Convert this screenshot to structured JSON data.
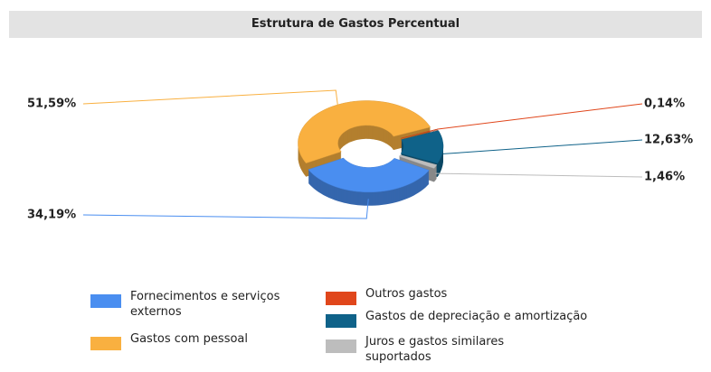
{
  "chart_data": {
    "type": "pie",
    "title": "Estrutura de Gastos Percentual",
    "categories": [
      "Fornecimentos e serviços externos",
      "Gastos com pessoal",
      "Outros gastos",
      "Gastos de depreciação e amortização",
      "Juros e gastos similares suportados"
    ],
    "values": [
      34.19,
      51.59,
      0.14,
      12.63,
      1.46
    ],
    "value_labels": [
      "34,19%",
      "51,59%",
      "0,14%",
      "12,63%",
      "1,46%"
    ],
    "colors": [
      "#4a8ef0",
      "#f9b040",
      "#e0461b",
      "#0f6289",
      "#bdbdbd"
    ],
    "donut": true,
    "legend": "bottom"
  }
}
